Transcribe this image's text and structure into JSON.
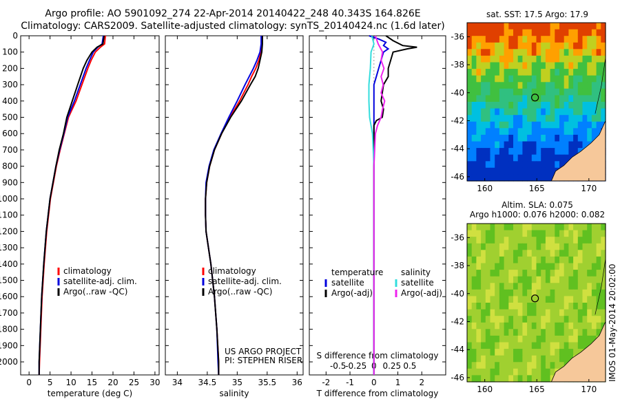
{
  "header": {
    "line1": "Argo profile: AO 5901092_274 22-Apr-2014 20140422_248 40.343S 164.826E",
    "line2": "Climatology: CARS2009. Satellite-adjusted climatology: synTS_20140424.nc (1.6d later)"
  },
  "colors": {
    "climatology": "#ff0000",
    "satellite_adj": "#0000dd",
    "argo": "#000000",
    "salinity_sat": "#33dddd",
    "salinity_argo": "#ee22ee",
    "land": "#f6c89a"
  },
  "depth_ticks": [
    "0",
    "100",
    "200",
    "300",
    "400",
    "500",
    "600",
    "700",
    "800",
    "900",
    "1000",
    "1100",
    "1200",
    "1300",
    "1400",
    "1500",
    "1600",
    "1700",
    "1800",
    "1900",
    "2000"
  ],
  "chart_data": [
    {
      "type": "line",
      "id": "temperature",
      "xlabel": "temperature (deg C)",
      "xlim": [
        -2,
        31
      ],
      "ylim": [
        2080,
        0
      ],
      "xticks": [
        "0",
        "5",
        "10",
        "15",
        "20",
        "25",
        "30"
      ],
      "legend": [
        "climatology",
        "satellite-adj. clim.",
        "Argo(..raw -QC)"
      ],
      "series": [
        {
          "name": "climatology",
          "depth": [
            0,
            50,
            70,
            100,
            150,
            200,
            300,
            400,
            500,
            600,
            700,
            800,
            900,
            1000,
            1200,
            1400,
            1600,
            1800,
            2000,
            2080
          ],
          "values": [
            18.2,
            18.0,
            17.0,
            15.8,
            14.8,
            14.0,
            12.6,
            11.2,
            9.4,
            8.4,
            7.4,
            6.5,
            5.8,
            5.1,
            4.2,
            3.6,
            3.1,
            2.8,
            2.5,
            2.4
          ]
        },
        {
          "name": "satellite-adj. clim.",
          "depth": [
            0,
            50,
            70,
            100,
            150,
            200,
            300,
            400,
            500,
            600,
            700,
            800,
            900,
            1000,
            1200,
            1400,
            1600,
            1800,
            2000,
            2080
          ],
          "values": [
            17.7,
            17.4,
            16.4,
            15.3,
            14.4,
            13.6,
            12.2,
            10.8,
            9.2,
            8.3,
            7.3,
            6.4,
            5.7,
            5.0,
            4.1,
            3.5,
            3.0,
            2.7,
            2.4,
            2.4
          ]
        },
        {
          "name": "Argo(..raw -QC)",
          "depth": [
            0,
            50,
            70,
            100,
            150,
            200,
            300,
            400,
            500,
            600,
            700,
            800,
            900,
            1000,
            1200,
            1400,
            1600,
            1800,
            2000,
            2080
          ],
          "values": [
            17.9,
            17.6,
            16.2,
            15.0,
            13.8,
            12.9,
            11.6,
            10.3,
            9.0,
            8.2,
            7.2,
            6.4,
            5.7,
            5.0,
            4.1,
            3.5,
            3.0,
            2.7,
            2.4,
            2.4
          ]
        }
      ]
    },
    {
      "type": "line",
      "id": "salinity",
      "xlabel": "salinity",
      "xlim": [
        33.8,
        36.1
      ],
      "ylim": [
        2080,
        0
      ],
      "xticks": [
        "34",
        "34.5",
        "35",
        "35.5",
        "36"
      ],
      "legend": [
        "climatology",
        "satellite-adj. clim.",
        "Argo(..raw -QC)"
      ],
      "annotations": [
        "US ARGO PROJECT",
        "PI: STEPHEN RISER"
      ],
      "series": [
        {
          "name": "climatology",
          "depth": [
            0,
            50,
            100,
            150,
            200,
            250,
            300,
            400,
            500,
            600,
            700,
            800,
            900,
            1000,
            1100,
            1200,
            1300,
            1400,
            1600,
            1800,
            2000,
            2080
          ],
          "values": [
            35.42,
            35.41,
            35.4,
            35.36,
            35.31,
            35.24,
            35.18,
            35.04,
            34.88,
            34.74,
            34.62,
            34.54,
            34.49,
            34.47,
            34.47,
            34.48,
            34.52,
            34.56,
            34.62,
            34.66,
            34.69,
            34.69
          ]
        },
        {
          "name": "satellite-adj. clim.",
          "depth": [
            0,
            50,
            100,
            150,
            200,
            250,
            300,
            400,
            500,
            600,
            700,
            800,
            900,
            1000,
            1100,
            1200,
            1300,
            1400,
            1600,
            1800,
            2000,
            2080
          ],
          "values": [
            35.4,
            35.4,
            35.38,
            35.33,
            35.27,
            35.2,
            35.13,
            35.0,
            34.86,
            34.73,
            34.61,
            34.53,
            34.48,
            34.47,
            34.47,
            34.48,
            34.52,
            34.56,
            34.62,
            34.66,
            34.68,
            34.69
          ]
        },
        {
          "name": "Argo(..raw -QC)",
          "depth": [
            0,
            50,
            100,
            150,
            200,
            250,
            300,
            400,
            500,
            600,
            700,
            800,
            900,
            1000,
            1100,
            1200,
            1300,
            1400,
            1600,
            1800,
            2000,
            2080
          ],
          "values": [
            35.42,
            35.42,
            35.41,
            35.38,
            35.35,
            35.3,
            35.22,
            35.07,
            34.89,
            34.74,
            34.62,
            34.54,
            34.49,
            34.47,
            34.47,
            34.48,
            34.52,
            34.56,
            34.62,
            34.66,
            34.69,
            34.69
          ]
        }
      ]
    },
    {
      "type": "line",
      "id": "difference",
      "xlabel": "T difference from climatology",
      "xlabel2": "S difference from climatology",
      "xlim": [
        -2.7,
        3.0
      ],
      "ylim": [
        2080,
        0
      ],
      "xticks": [
        "-2",
        "-1",
        "0",
        "1",
        "2"
      ],
      "xticks_s": [
        "-0.5",
        "-0.25",
        "0",
        "0.25",
        "0.5"
      ],
      "legend_temperature": [
        "temperature",
        "satellite",
        "Argo(-adj)"
      ],
      "legend_salinity": [
        "salinity",
        "satellite",
        "Argo(-adj)"
      ],
      "series": [
        {
          "name": "temperature satellite",
          "depth": [
            0,
            20,
            40,
            60,
            80,
            100,
            150,
            200,
            250,
            300,
            400,
            500,
            600,
            800,
            1000,
            1200,
            1400,
            1600,
            1800,
            2000,
            2080
          ],
          "values": [
            -0.2,
            0.2,
            0.5,
            0.4,
            0.6,
            0.4,
            0.3,
            0.2,
            0.1,
            0.0,
            0.0,
            0.0,
            0.0,
            0.0,
            0.0,
            0.0,
            0.0,
            0.0,
            0.0,
            0.0,
            0.0
          ]
        },
        {
          "name": "temperature Argo(-adj)",
          "depth": [
            0,
            30,
            60,
            70,
            80,
            100,
            150,
            200,
            250,
            300,
            350,
            400,
            450,
            500,
            520,
            550,
            600,
            800,
            1000,
            1200,
            1400,
            1600,
            1800,
            2000,
            2080
          ],
          "values": [
            0.5,
            0.8,
            1.2,
            1.8,
            1.4,
            0.8,
            0.7,
            0.6,
            0.6,
            0.4,
            0.35,
            0.3,
            0.4,
            0.35,
            0.1,
            0.0,
            0.0,
            0.0,
            0.0,
            0.0,
            0.0,
            0.0,
            0.0,
            0.0,
            0.0
          ]
        },
        {
          "name": "salinity satellite",
          "depth": [
            0,
            50,
            100,
            200,
            300,
            400,
            500,
            600,
            800,
            1000,
            1200,
            1400,
            1600,
            1800,
            2000,
            2080
          ],
          "values": [
            -0.03,
            0.0,
            -0.04,
            -0.05,
            -0.07,
            -0.07,
            -0.06,
            -0.02,
            0.0,
            0.0,
            0.0,
            0.0,
            0.0,
            0.0,
            0.0,
            0.0
          ]
        },
        {
          "name": "salinity Argo(-adj)",
          "depth": [
            0,
            50,
            100,
            150,
            200,
            250,
            300,
            350,
            400,
            450,
            500,
            550,
            600,
            800,
            1000,
            1200,
            1400,
            1600,
            1800,
            2000,
            2080
          ],
          "values": [
            0.02,
            0.06,
            0.12,
            0.1,
            0.14,
            0.1,
            0.13,
            0.1,
            0.15,
            0.12,
            0.1,
            0.05,
            0.02,
            0.0,
            0.0,
            0.0,
            0.0,
            0.0,
            0.0,
            0.0,
            0.0
          ]
        }
      ]
    }
  ],
  "maps": {
    "sst": {
      "title": "sat. SST: 17.5 Argo: 17.9",
      "yticks": [
        "-36",
        "-38",
        "-40",
        "-42",
        "-44",
        "-46"
      ],
      "xticks": [
        "160",
        "165",
        "170"
      ],
      "lat": -40.343,
      "lon": 164.826
    },
    "sla": {
      "title1": "Altim. SLA: 0.075",
      "title2": "Argo h1000: 0.076 h2000: 0.082",
      "yticks": [
        "-36",
        "-38",
        "-40",
        "-42",
        "-44",
        "-46"
      ],
      "xticks": [
        "160",
        "165",
        "170"
      ],
      "lat": -40.343,
      "lon": 164.826
    },
    "side_label": "IMOS 01-May-2014 20:02:00"
  }
}
